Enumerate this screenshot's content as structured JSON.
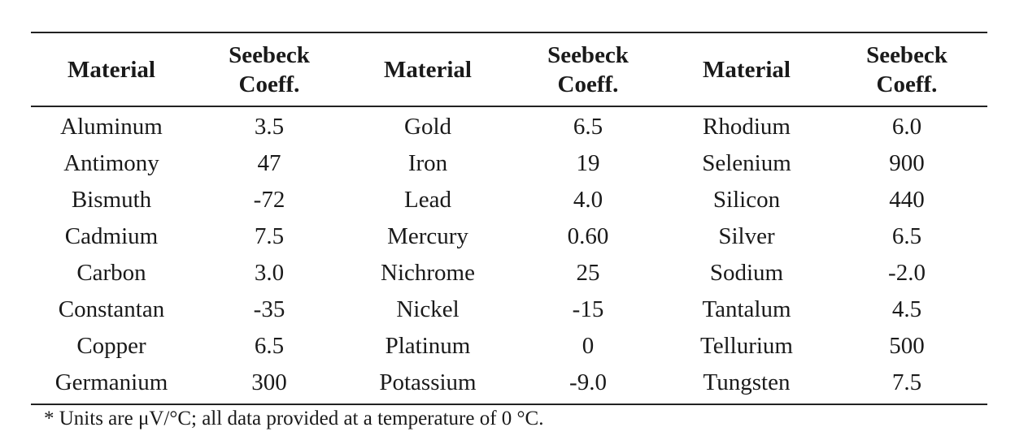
{
  "table": {
    "headers": [
      {
        "line1": "Material",
        "line2": ""
      },
      {
        "line1": "Seebeck",
        "line2": "Coeff."
      },
      {
        "line1": "Material",
        "line2": ""
      },
      {
        "line1": "Seebeck",
        "line2": "Coeff."
      },
      {
        "line1": "Material",
        "line2": ""
      },
      {
        "line1": "Seebeck",
        "line2": "Coeff."
      }
    ],
    "rows": [
      [
        "Aluminum",
        "3.5",
        "Gold",
        "6.5",
        "Rhodium",
        "6.0"
      ],
      [
        "Antimony",
        "47",
        "Iron",
        "19",
        "Selenium",
        "900"
      ],
      [
        "Bismuth",
        "-72",
        "Lead",
        "4.0",
        "Silicon",
        "440"
      ],
      [
        "Cadmium",
        "7.5",
        "Mercury",
        "0.60",
        "Silver",
        "6.5"
      ],
      [
        "Carbon",
        "3.0",
        "Nichrome",
        "25",
        "Sodium",
        "-2.0"
      ],
      [
        "Constantan",
        "-35",
        "Nickel",
        "-15",
        "Tantalum",
        "4.5"
      ],
      [
        "Copper",
        "6.5",
        "Platinum",
        "0",
        "Tellurium",
        "500"
      ],
      [
        "Germanium",
        "300",
        "Potassium",
        "-9.0",
        "Tungsten",
        "7.5"
      ]
    ]
  },
  "footnote": "* Units are μV/°C; all data provided at a temperature of 0 °C."
}
